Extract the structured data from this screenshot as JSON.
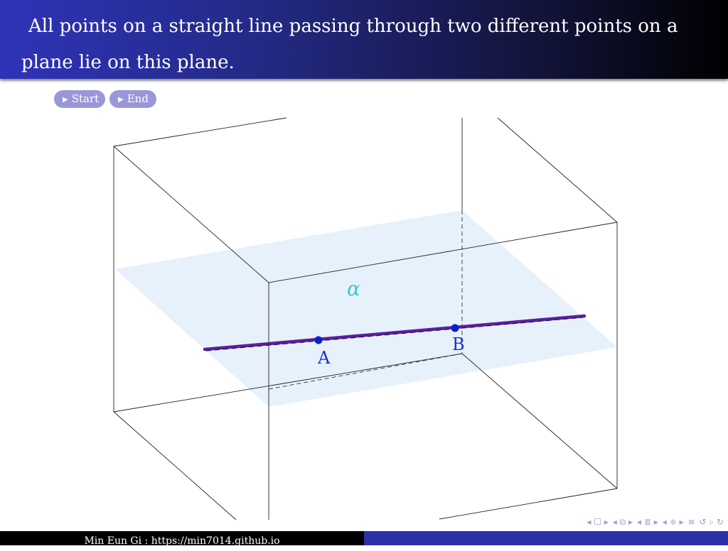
{
  "header": {
    "title": "All points on a straight line passing through two different points on a plane lie on this plane."
  },
  "controls": {
    "start_label": "Start",
    "end_label": "End"
  },
  "figure": {
    "plane_label": "α",
    "point_a_label": "A",
    "point_b_label": "B",
    "colors": {
      "plane": "#e6f1fb",
      "line": "#5a1f9e",
      "points": "#0b1fcc",
      "plane_label": "#41c7c7",
      "edges": "#222222"
    }
  },
  "navigation": {
    "icons": [
      "nav-prev-icon",
      "nav-frame-icon",
      "nav-subsection-icon",
      "nav-section-icon",
      "nav-menu-icon",
      "nav-search-icon"
    ]
  },
  "footer": {
    "author_text": "Min Eun Gi : https://min7014.github.io"
  }
}
